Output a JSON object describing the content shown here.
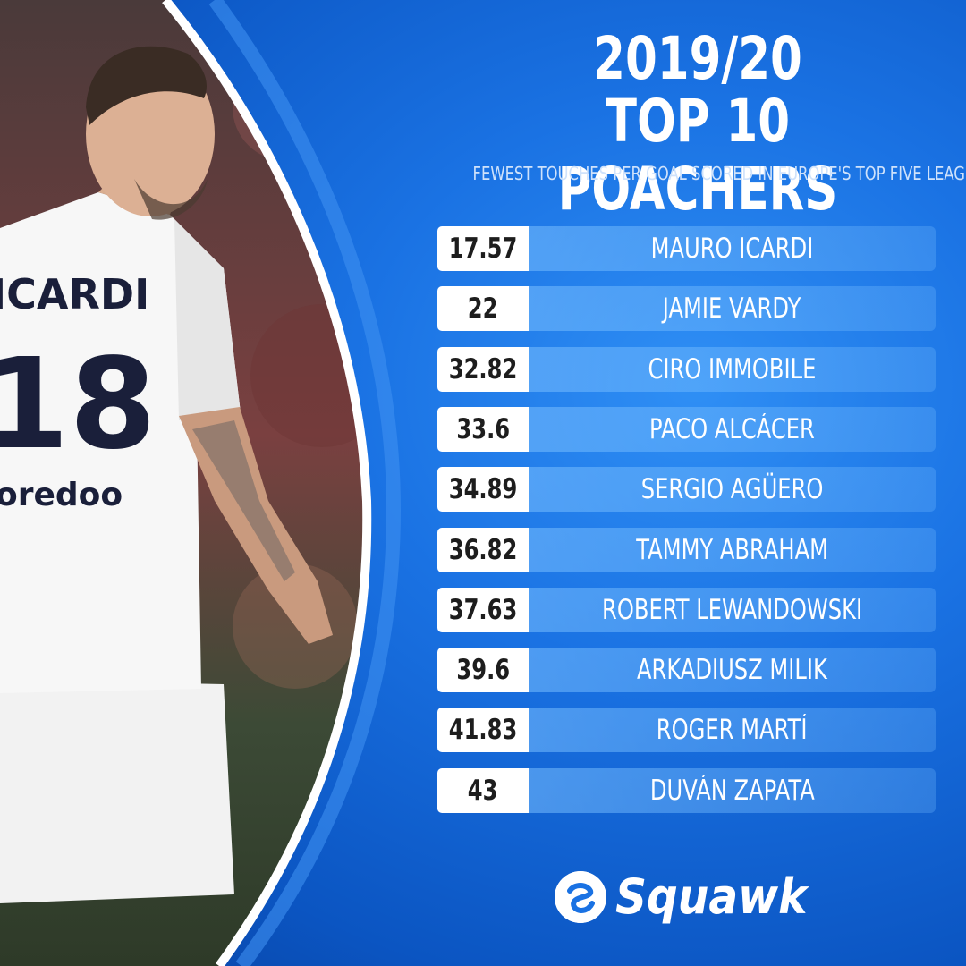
{
  "title_line1": "2019/20",
  "title_line2": "TOP 10 POACHERS",
  "subtitle": "FEWEST TOUCHES PER GOAL SCORED IN EUROPE'S TOP FIVE LEAGUES",
  "brand": "Squawk",
  "colors": {
    "accent": "#1a72e3",
    "dark": "#083f9c",
    "row_bg": "#78beff"
  },
  "chart_data": {
    "type": "table",
    "title": "2019/20 TOP 10 POACHERS",
    "subtitle": "FEWEST TOUCHES PER GOAL SCORED IN EUROPE'S TOP FIVE LEAGUES",
    "rows": [
      {
        "value": "17.57",
        "name": "MAURO ICARDI"
      },
      {
        "value": "22",
        "name": "JAMIE VARDY"
      },
      {
        "value": "32.82",
        "name": "CIRO IMMOBILE"
      },
      {
        "value": "33.6",
        "name": "PACO ALCÁCER"
      },
      {
        "value": "34.89",
        "name": "SERGIO AGÜERO"
      },
      {
        "value": "36.82",
        "name": "TAMMY ABRAHAM"
      },
      {
        "value": "37.63",
        "name": "ROBERT LEWANDOWSKI"
      },
      {
        "value": "39.6",
        "name": "ARKADIUSZ MILIK"
      },
      {
        "value": "41.83",
        "name": "ROGER MARTÍ"
      },
      {
        "value": "43",
        "name": "DUVÁN ZAPATA"
      }
    ]
  }
}
